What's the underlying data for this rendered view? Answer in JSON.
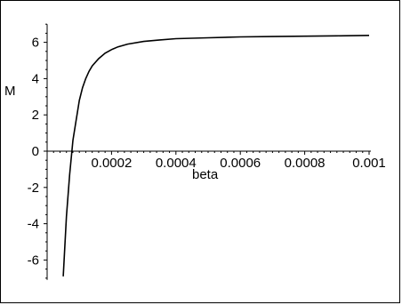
{
  "chart_data": {
    "type": "line",
    "title": "",
    "xlabel": "beta",
    "ylabel": "M",
    "xlim": [
      0,
      0.001
    ],
    "ylim": [
      -7,
      7
    ],
    "x_ticks": [
      {
        "value": 0.0002,
        "label": "0.0002"
      },
      {
        "value": 0.0004,
        "label": "0.0004"
      },
      {
        "value": 0.0006,
        "label": "0.0006"
      },
      {
        "value": 0.0008,
        "label": "0.0008"
      },
      {
        "value": 0.001,
        "label": "0.001"
      }
    ],
    "y_ticks": [
      {
        "value": 6,
        "label": "6"
      },
      {
        "value": 4,
        "label": "4"
      },
      {
        "value": 2,
        "label": "2"
      },
      {
        "value": 0,
        "label": "0"
      },
      {
        "value": -2,
        "label": "-2"
      },
      {
        "value": -4,
        "label": "-4"
      },
      {
        "value": -6,
        "label": "-6"
      }
    ],
    "grid": false,
    "legend": "none",
    "line_color": "#000000",
    "series": [
      {
        "x": [
          5e-05,
          6e-05,
          7e-05,
          8e-05,
          9e-05,
          0.0001,
          0.00011,
          0.00012,
          0.00013,
          0.00014,
          0.00016,
          0.00018,
          0.0002,
          0.00022,
          0.00025,
          0.0003,
          0.00035,
          0.0004,
          0.0005,
          0.0006,
          0.0007,
          0.0008,
          0.0009,
          0.001
        ],
        "y": [
          -6.9,
          -3.6,
          -1.3,
          0.6,
          1.7,
          2.8,
          3.5,
          4.0,
          4.4,
          4.7,
          5.1,
          5.4,
          5.6,
          5.75,
          5.9,
          6.05,
          6.13,
          6.2,
          6.25,
          6.3,
          6.32,
          6.34,
          6.36,
          6.38
        ]
      }
    ]
  }
}
